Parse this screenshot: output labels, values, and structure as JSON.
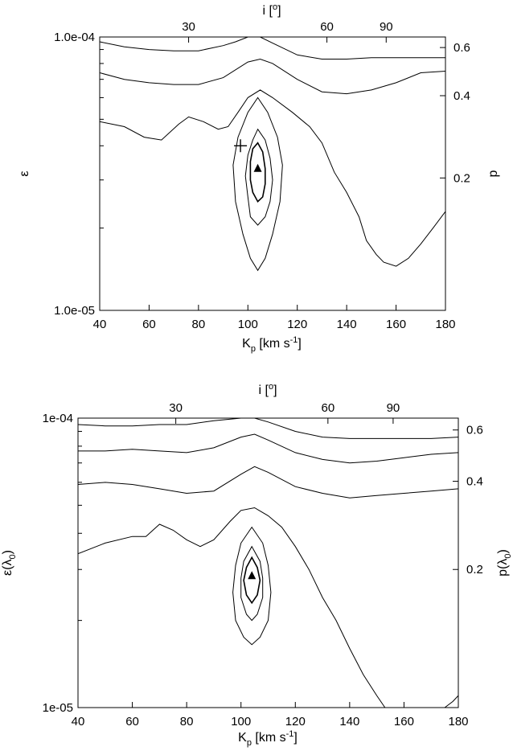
{
  "chart_data": [
    {
      "type": "contour",
      "xlabel": "K_p [km s^-1]",
      "xlabel_parts": [
        "K",
        "p",
        " [km s",
        "-1",
        "]"
      ],
      "ylabel": "ε",
      "ylabel_right": "p",
      "xlabel_top": "i [o]",
      "xlabel_top_parts": [
        "i [",
        "o",
        "]"
      ],
      "xlim": [
        40,
        180
      ],
      "ylim": [
        1e-05,
        0.0001
      ],
      "yscale": "log",
      "x_ticks": [
        "40",
        "60",
        "80",
        "100",
        "120",
        "140",
        "160",
        "180"
      ],
      "x_tick_values": [
        40,
        60,
        80,
        100,
        120,
        140,
        160,
        180
      ],
      "y_ticks": [
        "1.0e-05",
        "1.0e-04"
      ],
      "y_tick_values": [
        1e-05,
        0.0001
      ],
      "top_ticks": [
        "30",
        "60",
        "90"
      ],
      "top_tick_kp": [
        76,
        132,
        156
      ],
      "right_ticks": [
        "0.2",
        "0.4",
        "0.6"
      ],
      "right_tick_eps": [
        3.05e-05,
        6.1e-05,
        9.15e-05
      ],
      "best_fit": {
        "kp": 104,
        "eps": 3.3e-05
      },
      "cross": {
        "kp": 97,
        "eps": 4e-05
      },
      "contours": [
        {
          "level": "outer-1",
          "points": [
            [
              40,
              9.6e-05
            ],
            [
              50,
              9.2e-05
            ],
            [
              60,
              9e-05
            ],
            [
              70,
              8.9e-05
            ],
            [
              80,
              8.9e-05
            ],
            [
              90,
              9.3e-05
            ],
            [
              95,
              9.6e-05
            ],
            [
              100,
              0.0001
            ],
            [
              105,
              0.0001
            ],
            [
              110,
              9.5e-05
            ],
            [
              120,
              8.6e-05
            ],
            [
              130,
              8.3e-05
            ],
            [
              140,
              8.3e-05
            ],
            [
              150,
              8.4e-05
            ],
            [
              160,
              8.4e-05
            ],
            [
              170,
              8.4e-05
            ],
            [
              180,
              8.4e-05
            ]
          ]
        },
        {
          "level": "outer-2",
          "points": [
            [
              40,
              7.4e-05
            ],
            [
              50,
              7e-05
            ],
            [
              60,
              6.8e-05
            ],
            [
              70,
              6.7e-05
            ],
            [
              80,
              6.7e-05
            ],
            [
              90,
              7.1e-05
            ],
            [
              100,
              8.1e-05
            ],
            [
              105,
              8.3e-05
            ],
            [
              110,
              8e-05
            ],
            [
              120,
              7e-05
            ],
            [
              130,
              6.3e-05
            ],
            [
              140,
              6.2e-05
            ],
            [
              150,
              6.4e-05
            ],
            [
              160,
              6.8e-05
            ],
            [
              170,
              7.4e-05
            ],
            [
              180,
              7.5e-05
            ]
          ]
        },
        {
          "level": "outer-3",
          "points": [
            [
              40,
              4.9e-05
            ],
            [
              50,
              4.7e-05
            ],
            [
              58,
              4.3e-05
            ],
            [
              65,
              4.2e-05
            ],
            [
              72,
              4.8e-05
            ],
            [
              76,
              5.1e-05
            ],
            [
              82,
              4.9e-05
            ],
            [
              88,
              4.6e-05
            ],
            [
              92,
              4.7e-05
            ],
            [
              96,
              5.3e-05
            ],
            [
              100,
              6e-05
            ],
            [
              105,
              6.4e-05
            ],
            [
              110,
              6e-05
            ],
            [
              118,
              5.3e-05
            ],
            [
              125,
              4.7e-05
            ],
            [
              130,
              4.1e-05
            ],
            [
              135,
              3.2e-05
            ],
            [
              140,
              2.7e-05
            ],
            [
              145,
              2.2e-05
            ],
            [
              148,
              1.8e-05
            ],
            [
              152,
              1.6e-05
            ],
            [
              155,
              1.5e-05
            ],
            [
              160,
              1.45e-05
            ],
            [
              165,
              1.55e-05
            ],
            [
              170,
              1.75e-05
            ],
            [
              175,
              2e-05
            ],
            [
              180,
              2.3e-05
            ]
          ]
        },
        {
          "level": "inner-1",
          "closed": true,
          "points": [
            [
              104,
              6e-05
            ],
            [
              108,
              5.3e-05
            ],
            [
              112,
              4.3e-05
            ],
            [
              114,
              3.4e-05
            ],
            [
              113,
              2.5e-05
            ],
            [
              110,
              1.9e-05
            ],
            [
              107,
              1.55e-05
            ],
            [
              104,
              1.4e-05
            ],
            [
              101,
              1.55e-05
            ],
            [
              98,
              1.9e-05
            ],
            [
              95,
              2.5e-05
            ],
            [
              94,
              3.4e-05
            ],
            [
              96,
              4.3e-05
            ],
            [
              100,
              5.3e-05
            ]
          ]
        },
        {
          "level": "inner-2",
          "closed": true,
          "points": [
            [
              104,
              4.6e-05
            ],
            [
              107,
              4.2e-05
            ],
            [
              109,
              3.6e-05
            ],
            [
              110,
              3e-05
            ],
            [
              109,
              2.5e-05
            ],
            [
              107,
              2.2e-05
            ],
            [
              104,
              2.05e-05
            ],
            [
              101,
              2.2e-05
            ],
            [
              100,
              2.6e-05
            ],
            [
              99,
              3.1e-05
            ],
            [
              100,
              3.7e-05
            ],
            [
              102,
              4.2e-05
            ]
          ]
        },
        {
          "level": "inner-3",
          "closed": true,
          "points": [
            [
              104,
              4.1e-05
            ],
            [
              106,
              3.8e-05
            ],
            [
              107,
              3.3e-05
            ],
            [
              107,
              2.9e-05
            ],
            [
              106,
              2.6e-05
            ],
            [
              104,
              2.5e-05
            ],
            [
              102,
              2.7e-05
            ],
            [
              101,
              3e-05
            ],
            [
              101,
              3.5e-05
            ],
            [
              102,
              3.9e-05
            ]
          ]
        }
      ]
    },
    {
      "type": "contour",
      "xlabel": "K_p [km s^-1]",
      "xlabel_parts": [
        "K",
        "p",
        " [km s",
        "-1",
        "]"
      ],
      "ylabel": "ε(λ0)",
      "ylabel_parts": [
        "ε(λ",
        "0",
        ")"
      ],
      "ylabel_right": "p(λ0)",
      "ylabel_right_parts": [
        "p(λ",
        "0",
        ")"
      ],
      "xlabel_top": "i [o]",
      "xlabel_top_parts": [
        "i [",
        "o",
        "]"
      ],
      "xlim": [
        40,
        180
      ],
      "ylim": [
        1e-05,
        0.0001
      ],
      "yscale": "log",
      "x_ticks": [
        "40",
        "60",
        "80",
        "100",
        "120",
        "140",
        "160",
        "180"
      ],
      "x_tick_values": [
        40,
        60,
        80,
        100,
        120,
        140,
        160,
        180
      ],
      "y_ticks": [
        "1e-05",
        "1e-04"
      ],
      "y_tick_values": [
        1e-05,
        0.0001
      ],
      "top_ticks": [
        "30",
        "60",
        "90"
      ],
      "top_tick_kp": [
        76,
        132,
        156
      ],
      "right_ticks": [
        "0.2",
        "0.4",
        "0.6"
      ],
      "right_tick_eps": [
        3e-05,
        6.05e-05,
        9.1e-05
      ],
      "best_fit": {
        "kp": 104,
        "eps": 2.85e-05
      },
      "contours": [
        {
          "level": "outer-1",
          "points": [
            [
              40,
              9.5e-05
            ],
            [
              50,
              9.4e-05
            ],
            [
              60,
              9.4e-05
            ],
            [
              70,
              9.5e-05
            ],
            [
              80,
              9.5e-05
            ],
            [
              90,
              9.8e-05
            ],
            [
              100,
              0.0001
            ],
            [
              105,
              0.0001
            ],
            [
              110,
              9.7e-05
            ],
            [
              120,
              9e-05
            ],
            [
              130,
              8.6e-05
            ],
            [
              140,
              8.5e-05
            ],
            [
              150,
              8.5e-05
            ],
            [
              160,
              8.5e-05
            ],
            [
              170,
              8.5e-05
            ],
            [
              180,
              8.6e-05
            ]
          ]
        },
        {
          "level": "outer-2",
          "points": [
            [
              40,
              7.7e-05
            ],
            [
              50,
              7.7e-05
            ],
            [
              60,
              7.8e-05
            ],
            [
              70,
              7.7e-05
            ],
            [
              80,
              7.6e-05
            ],
            [
              90,
              7.9e-05
            ],
            [
              100,
              8.6e-05
            ],
            [
              105,
              8.8e-05
            ],
            [
              110,
              8.4e-05
            ],
            [
              120,
              7.6e-05
            ],
            [
              130,
              7.2e-05
            ],
            [
              140,
              7e-05
            ],
            [
              150,
              7.1e-05
            ],
            [
              160,
              7.3e-05
            ],
            [
              170,
              7.5e-05
            ],
            [
              180,
              7.6e-05
            ]
          ]
        },
        {
          "level": "outer-3",
          "points": [
            [
              40,
              5.9e-05
            ],
            [
              50,
              6e-05
            ],
            [
              60,
              5.9e-05
            ],
            [
              70,
              5.7e-05
            ],
            [
              80,
              5.5e-05
            ],
            [
              90,
              5.6e-05
            ],
            [
              100,
              6.4e-05
            ],
            [
              105,
              6.8e-05
            ],
            [
              110,
              6.5e-05
            ],
            [
              120,
              5.8e-05
            ],
            [
              130,
              5.5e-05
            ],
            [
              140,
              5.3e-05
            ],
            [
              150,
              5.4e-05
            ],
            [
              160,
              5.5e-05
            ],
            [
              170,
              5.6e-05
            ],
            [
              180,
              5.7e-05
            ]
          ]
        },
        {
          "level": "outer-4",
          "points": [
            [
              40,
              3.4e-05
            ],
            [
              50,
              3.7e-05
            ],
            [
              60,
              3.9e-05
            ],
            [
              65,
              3.9e-05
            ],
            [
              70,
              4.3e-05
            ],
            [
              75,
              4.1e-05
            ],
            [
              80,
              3.8e-05
            ],
            [
              85,
              3.6e-05
            ],
            [
              90,
              3.8e-05
            ],
            [
              96,
              4.4e-05
            ],
            [
              100,
              4.8e-05
            ],
            [
              105,
              4.9e-05
            ],
            [
              110,
              4.6e-05
            ],
            [
              115,
              4.2e-05
            ],
            [
              120,
              3.6e-05
            ],
            [
              125,
              3e-05
            ],
            [
              130,
              2.4e-05
            ],
            [
              135,
              2e-05
            ],
            [
              140,
              1.6e-05
            ],
            [
              145,
              1.3e-05
            ],
            [
              150,
              1.1e-05
            ],
            [
              153,
              1e-05
            ]
          ]
        },
        {
          "level": "outer-4b",
          "points": [
            [
              175,
              1e-05
            ],
            [
              178,
              1.05e-05
            ],
            [
              180,
              1.1e-05
            ]
          ]
        },
        {
          "level": "inner-1",
          "closed": true,
          "points": [
            [
              104,
              4.2e-05
            ],
            [
              108,
              3.7e-05
            ],
            [
              110,
              3.1e-05
            ],
            [
              111,
              2.5e-05
            ],
            [
              110,
              2e-05
            ],
            [
              107,
              1.75e-05
            ],
            [
              104,
              1.65e-05
            ],
            [
              101,
              1.75e-05
            ],
            [
              98,
              2e-05
            ],
            [
              97,
              2.5e-05
            ],
            [
              98,
              3.1e-05
            ],
            [
              100,
              3.7e-05
            ]
          ]
        },
        {
          "level": "inner-2",
          "closed": true,
          "points": [
            [
              104,
              3.6e-05
            ],
            [
              107,
              3.2e-05
            ],
            [
              108,
              2.8e-05
            ],
            [
              108,
              2.4e-05
            ],
            [
              106,
              2.1e-05
            ],
            [
              104,
              2e-05
            ],
            [
              102,
              2.1e-05
            ],
            [
              100,
              2.4e-05
            ],
            [
              100,
              2.8e-05
            ],
            [
              101,
              3.2e-05
            ]
          ]
        },
        {
          "level": "inner-3",
          "closed": true,
          "points": [
            [
              104,
              3.3e-05
            ],
            [
              106,
              3.05e-05
            ],
            [
              107,
              2.75e-05
            ],
            [
              106,
              2.45e-05
            ],
            [
              104,
              2.3e-05
            ],
            [
              102,
              2.45e-05
            ],
            [
              101,
              2.75e-05
            ],
            [
              102,
              3.05e-05
            ]
          ]
        }
      ]
    }
  ]
}
